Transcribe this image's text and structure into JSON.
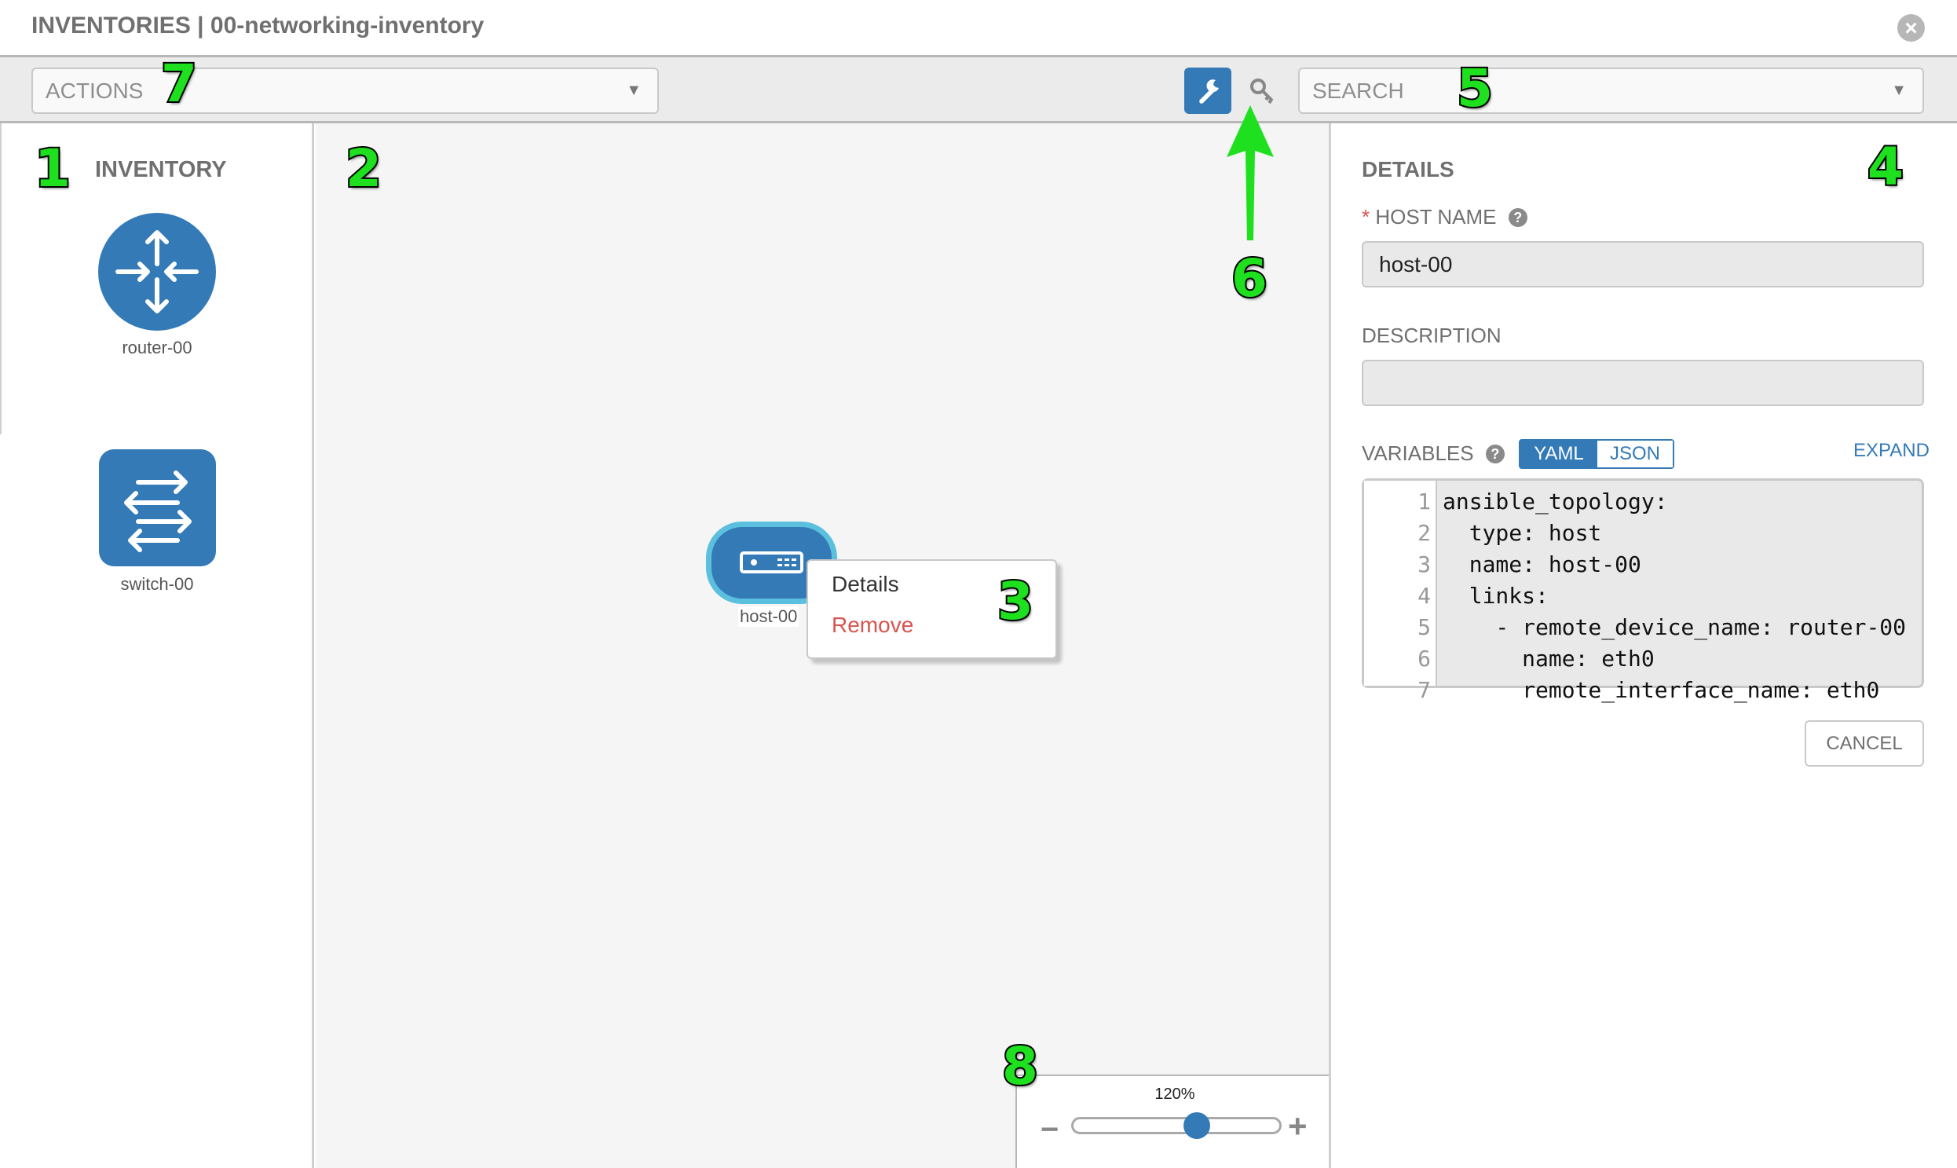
{
  "header": {
    "title": "INVENTORIES | 00-networking-inventory",
    "close_icon": "close-circle-icon"
  },
  "toolbar": {
    "actions_placeholder": "ACTIONS",
    "search_placeholder": "SEARCH",
    "wrench_icon": "wrench-icon",
    "key_icon": "key-icon",
    "active_tool": "wrench"
  },
  "inventory": {
    "title": "INVENTORY",
    "items": [
      {
        "label": "router-00",
        "icon": "router-icon"
      },
      {
        "label": "switch-00",
        "icon": "switch-icon"
      }
    ]
  },
  "canvas": {
    "node": {
      "label": "host-00",
      "icon": "host-server-icon"
    },
    "context_menu": {
      "details": "Details",
      "remove": "Remove"
    },
    "zoom": {
      "label": "120%",
      "value_percent": 120,
      "minus": "−",
      "plus": "+"
    }
  },
  "details": {
    "title": "DETAILS",
    "host_name_label": "HOST NAME",
    "required_mark": "*",
    "host_name_value": "host-00",
    "description_label": "DESCRIPTION",
    "description_value": "",
    "variables_label": "VARIABLES",
    "yaml_label": "YAML",
    "json_label": "JSON",
    "expand_label": "EXPAND",
    "code_lines": [
      "ansible_topology:",
      "  type: host",
      "  name: host-00",
      "  links:",
      "    - remote_device_name: router-00",
      "      name: eth0",
      "      remote_interface_name: eth0"
    ],
    "line_numbers": [
      "1",
      "2",
      "3",
      "4",
      "5",
      "6",
      "7"
    ],
    "cancel_label": "CANCEL"
  },
  "annotations": [
    "1",
    "2",
    "3",
    "4",
    "5",
    "6",
    "7",
    "8"
  ],
  "colors": {
    "primary": "#337ab7",
    "node_border": "#5bc0de",
    "danger": "#d9534f",
    "annotation": "#1fe01f"
  }
}
